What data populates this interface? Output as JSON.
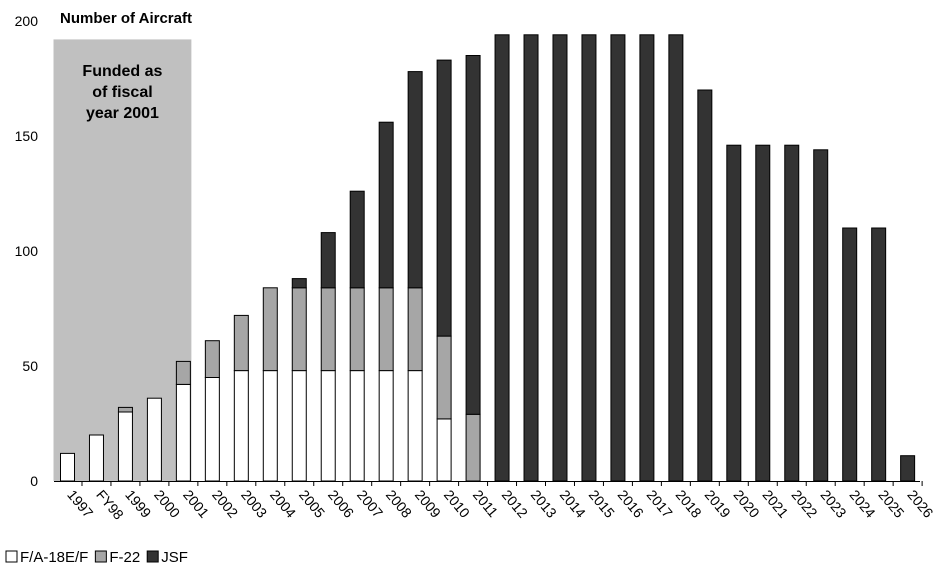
{
  "chart_data": {
    "type": "bar",
    "stacked": true,
    "title": "Number of Aircraft",
    "xlabel": "",
    "ylabel": "",
    "ylim": [
      0,
      200
    ],
    "yticks": [
      0,
      50,
      100,
      150,
      200
    ],
    "categories": [
      "1997",
      "FY98",
      "1999",
      "2000",
      "2001",
      "2002",
      "2003",
      "2004",
      "2005",
      "2006",
      "2007",
      "2008",
      "2009",
      "2010",
      "2011",
      "2012",
      "2013",
      "2014",
      "2015",
      "2016",
      "2017",
      "2018",
      "2019",
      "2020",
      "2021",
      "2022",
      "2023",
      "2024",
      "2025",
      "2026"
    ],
    "series": [
      {
        "name": "F/A-18E/F",
        "color": "#ffffff",
        "values": [
          12,
          20,
          30,
          36,
          42,
          45,
          48,
          48,
          48,
          48,
          48,
          48,
          48,
          27,
          0,
          0,
          0,
          0,
          0,
          0,
          0,
          0,
          0,
          0,
          0,
          0,
          0,
          0,
          0,
          0
        ]
      },
      {
        "name": "F-22",
        "color": "#a6a6a6",
        "values": [
          0,
          0,
          2,
          0,
          10,
          16,
          24,
          36,
          36,
          36,
          36,
          36,
          36,
          36,
          29,
          0,
          0,
          0,
          0,
          0,
          0,
          0,
          0,
          0,
          0,
          0,
          0,
          0,
          0,
          0
        ]
      },
      {
        "name": "JSF",
        "color": "#333333",
        "values": [
          0,
          0,
          0,
          0,
          0,
          0,
          0,
          0,
          4,
          24,
          42,
          72,
          94,
          120,
          156,
          194,
          194,
          194,
          194,
          194,
          194,
          194,
          170,
          146,
          146,
          146,
          144,
          110,
          110,
          11
        ]
      }
    ],
    "annotation": {
      "text": [
        "Funded as",
        "of fiscal",
        "year 2001"
      ],
      "span": [
        "1997",
        "2001"
      ],
      "color": "#c0c0c0"
    },
    "grid": false,
    "legend_position": "bottom-left"
  }
}
